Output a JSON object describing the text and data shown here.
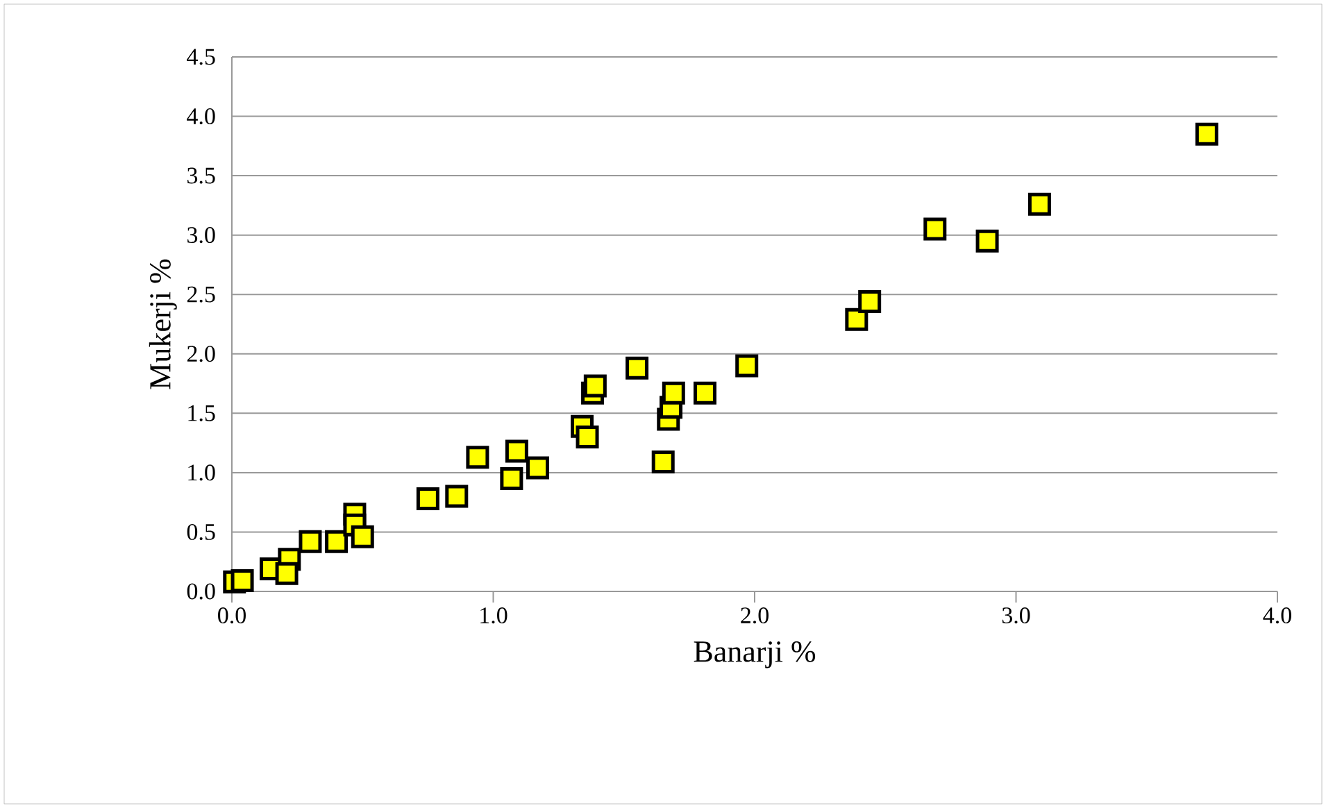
{
  "chart_data": {
    "type": "scatter",
    "xlabel": "Banarji %",
    "ylabel": "Mukerji %",
    "xlim": [
      0,
      4
    ],
    "ylim": [
      0,
      4.5
    ],
    "xticks": [
      {
        "value": 0,
        "label": "0.0"
      },
      {
        "value": 1,
        "label": "1.0"
      },
      {
        "value": 2,
        "label": "2.0"
      },
      {
        "value": 3,
        "label": "3.0"
      },
      {
        "value": 4,
        "label": "4.0"
      }
    ],
    "yticks": [
      {
        "value": 0,
        "label": "0.0"
      },
      {
        "value": 0.5,
        "label": "0.5"
      },
      {
        "value": 1,
        "label": "1.0"
      },
      {
        "value": 1.5,
        "label": "1.5"
      },
      {
        "value": 2,
        "label": "2.0"
      },
      {
        "value": 2.5,
        "label": "2.5"
      },
      {
        "value": 3,
        "label": "3.0"
      },
      {
        "value": 3.5,
        "label": "3.5"
      },
      {
        "value": 4,
        "label": "4.0"
      },
      {
        "value": 4.5,
        "label": "4.5"
      }
    ],
    "grid": "y",
    "marker": "square",
    "series": [
      {
        "color": "#ffff00",
        "x": [
          0.01,
          0.04,
          0.15,
          0.22,
          0.21,
          0.3,
          0.4,
          0.47,
          0.47,
          0.5,
          0.75,
          0.86,
          0.94,
          1.09,
          1.17,
          1.07,
          1.34,
          1.36,
          1.38,
          1.39,
          1.55,
          1.65,
          1.67,
          1.68,
          1.69,
          1.81,
          1.97,
          2.39,
          2.44,
          2.69,
          2.89,
          3.09,
          3.73
        ],
        "values": [
          0.08,
          0.09,
          0.19,
          0.27,
          0.15,
          0.42,
          0.42,
          0.65,
          0.56,
          0.46,
          0.78,
          0.8,
          1.13,
          1.18,
          1.04,
          0.95,
          1.39,
          1.3,
          1.67,
          1.73,
          1.88,
          1.09,
          1.45,
          1.55,
          1.67,
          1.67,
          1.9,
          2.29,
          2.44,
          3.05,
          2.95,
          3.26,
          3.85
        ]
      }
    ]
  }
}
